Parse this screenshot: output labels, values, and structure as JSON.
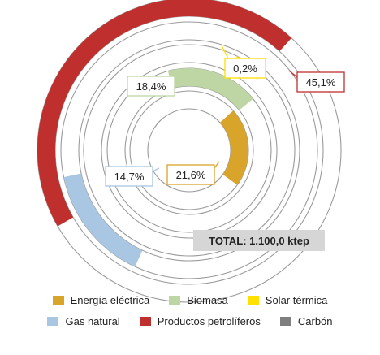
{
  "chart_data": {
    "type": "radial-bar",
    "unit": "%",
    "total": {
      "label": "TOTAL: 1.100,0 ktep"
    },
    "series": [
      {
        "name": "Energía eléctrica",
        "value": 21.6,
        "label": "21,6%",
        "color": "#D9A42A"
      },
      {
        "name": "Biomasa",
        "value": 18.4,
        "label": "18,4%",
        "color": "#BDD6A4"
      },
      {
        "name": "Solar térmica",
        "value": 0.2,
        "label": "0,2%",
        "color": "#FFE000"
      },
      {
        "name": "Gas natural",
        "value": 14.7,
        "label": "14,7%",
        "color": "#A9C6E2"
      },
      {
        "name": "Productos petrolíferos",
        "value": 45.1,
        "label": "45,1%",
        "color": "#BF2F2E"
      },
      {
        "name": "Carbón",
        "value": 0.0,
        "label": "",
        "color": "#7F7F7F"
      }
    ],
    "legend": [
      [
        "Energía eléctrica",
        "Biomasa",
        "Solar térmica"
      ],
      [
        "Gas natural",
        "Productos petrolíferos",
        "Carbón"
      ]
    ]
  }
}
